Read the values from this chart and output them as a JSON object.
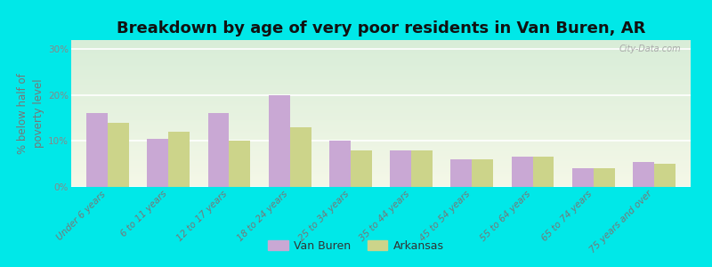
{
  "title": "Breakdown by age of very poor residents in Van Buren, AR",
  "ylabel": "% below half of\npoverty level",
  "categories": [
    "Under 6 years",
    "6 to 11 years",
    "12 to 17 years",
    "18 to 24 years",
    "25 to 34 years",
    "35 to 44 years",
    "45 to 54 years",
    "55 to 64 years",
    "65 to 74 years",
    "75 years and over"
  ],
  "van_buren": [
    16,
    10.5,
    16,
    20,
    10,
    8,
    6,
    6.5,
    4,
    5.5
  ],
  "arkansas": [
    14,
    12,
    10,
    13,
    8,
    8,
    6,
    6.5,
    4,
    5
  ],
  "van_buren_color": "#c9a8d4",
  "arkansas_color": "#ccd48a",
  "background_outer": "#00e8e8",
  "background_grad_top": "#d8edd8",
  "background_grad_bottom": "#f5f8e8",
  "ylim": [
    0,
    32
  ],
  "yticks": [
    0,
    10,
    20,
    30
  ],
  "ytick_labels": [
    "0%",
    "10%",
    "20%",
    "30%"
  ],
  "bar_width": 0.35,
  "title_fontsize": 13,
  "axis_fontsize": 8.5,
  "tick_fontsize": 7.5,
  "legend_fontsize": 9,
  "watermark": "City-Data.com"
}
